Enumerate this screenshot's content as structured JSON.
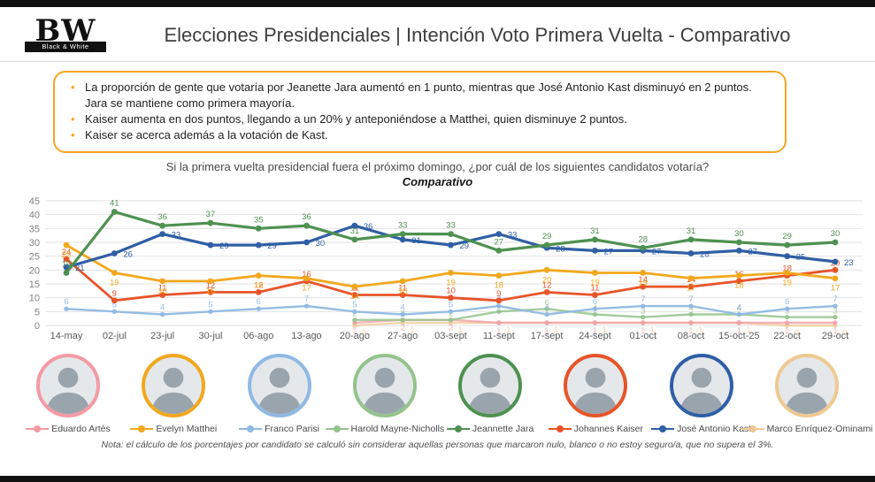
{
  "logo": {
    "line1": "BW",
    "line2": "Black & White"
  },
  "header": {
    "title": "Elecciones Presidenciales | Intención Voto Primera Vuelta - Comparativo"
  },
  "insights": {
    "bullets": [
      "La proporción de gente que votaría por Jeanette Jara aumentó en 1 punto, mientras que José Antonio Kast disminuyó en 2 puntos. Jara se mantiene como primera mayoría.",
      "Kaiser aumenta en dos puntos, llegando a un 20% y anteponiéndose a Matthei, quien disminuye 2 puntos.",
      "Kaiser se acerca además a la votación de Kast."
    ]
  },
  "question": "Si la primera vuelta presidencial fuera el próximo domingo, ¿por cuál de los siguientes candidatos votaría?",
  "chart_label": "Comparativo",
  "chart_data": {
    "type": "line",
    "title": "Comparativo",
    "categories": [
      "14-may",
      "02-jul",
      "23-jul",
      "30-jul",
      "06-ago",
      "13-ago",
      "20-ago",
      "27-ago",
      "03-sept",
      "11-sept",
      "17-sept",
      "24-sept",
      "01-oct",
      "08-oct",
      "15-oct-25",
      "22-oct",
      "29-oct"
    ],
    "ylim": [
      0,
      45
    ],
    "yticks": [
      0,
      5,
      10,
      15,
      20,
      25,
      30,
      35,
      40,
      45
    ],
    "grid": "horizontal",
    "legend_position": "bottom-avatars",
    "series": [
      {
        "name": "Marco Enríquez-Ominami",
        "color": "#eec992",
        "width": 2.4,
        "opacity": 0.75,
        "label_offset": [
          8,
          11
        ],
        "values": [
          null,
          null,
          null,
          null,
          null,
          null,
          0,
          1,
          1,
          1,
          1,
          1,
          1,
          1,
          1,
          0,
          0
        ]
      },
      {
        "name": "Eduardo Artés",
        "color": "#f49aa4",
        "width": 2.4,
        "opacity": 0.75,
        "label_offset": [
          0,
          12
        ],
        "values": [
          null,
          null,
          null,
          null,
          null,
          null,
          1,
          2,
          2,
          1,
          1,
          1,
          1,
          1,
          1,
          1,
          1
        ]
      },
      {
        "name": "Harold Mayne-Nicholls",
        "color": "#94c38c",
        "width": 2.4,
        "opacity": 0.85,
        "label_offset": [
          0,
          -4
        ],
        "values": [
          null,
          null,
          null,
          null,
          null,
          null,
          2,
          2,
          2,
          5,
          6,
          4,
          3,
          4,
          4,
          3,
          3
        ]
      },
      {
        "name": "Franco Parisi",
        "color": "#8fb9e3",
        "width": 2.4,
        "opacity": 0.95,
        "label_offset": [
          0,
          -5
        ],
        "values": [
          6,
          5,
          4,
          5,
          6,
          7,
          5,
          4,
          5,
          7,
          4,
          6,
          7,
          7,
          4,
          6,
          7
        ]
      },
      {
        "name": "Johannes Kaiser",
        "color": "#e85429",
        "width": 2.8,
        "opacity": 1,
        "label_offset": [
          0,
          -5
        ],
        "values": [
          24,
          9,
          11,
          12,
          12,
          16,
          11,
          11,
          10,
          9,
          12,
          11,
          14,
          14,
          16,
          18,
          20
        ]
      },
      {
        "name": "Evelyn Matthei",
        "color": "#f2a81d",
        "width": 2.8,
        "opacity": 1,
        "label_offset": [
          0,
          14
        ],
        "values": [
          29,
          19,
          16,
          16,
          18,
          17,
          14,
          16,
          19,
          18,
          20,
          19,
          19,
          17,
          18,
          19,
          17
        ]
      },
      {
        "name": "José Antonio Kast",
        "color": "#2f5fa5",
        "width": 3.2,
        "opacity": 1,
        "label_offset": [
          10,
          4
        ],
        "values": [
          21,
          26,
          33,
          29,
          29,
          30,
          36,
          31,
          29,
          33,
          28,
          27,
          27,
          26,
          27,
          25,
          23
        ]
      },
      {
        "name": "Jeannette Jara",
        "color": "#4e9150",
        "width": 3.2,
        "opacity": 1,
        "label_offset": [
          0,
          -7
        ],
        "values": [
          19,
          41,
          36,
          37,
          35,
          36,
          31,
          33,
          33,
          27,
          29,
          31,
          28,
          31,
          30,
          29,
          30
        ]
      }
    ]
  },
  "candidates": [
    {
      "name": "Eduardo Artés",
      "color": "#f49aa4"
    },
    {
      "name": "Evelyn Matthei",
      "color": "#f2a81d"
    },
    {
      "name": "Franco Parisi",
      "color": "#8fb9e3"
    },
    {
      "name": "Harold Mayne-Nicholls",
      "color": "#94c38c"
    },
    {
      "name": "Jeannette Jara",
      "color": "#4e9150"
    },
    {
      "name": "Johannes Kaiser",
      "color": "#e85429"
    },
    {
      "name": "José Antonio Kast",
      "color": "#2f5fa5"
    },
    {
      "name": "Marco Enríquez-Ominami",
      "color": "#eec992"
    }
  ],
  "note": "Nota: el cálculo de los porcentajes por candidato se calculó sin considerar aquellas personas que marcaron nulo, blanco o no estoy seguro/a, que no supera el 3%.",
  "colors": {
    "accent": "#f5a623",
    "bar": "#111111",
    "grid": "#e2e2e2",
    "ytick": "#7f7f7f",
    "xtick": "#595959"
  }
}
